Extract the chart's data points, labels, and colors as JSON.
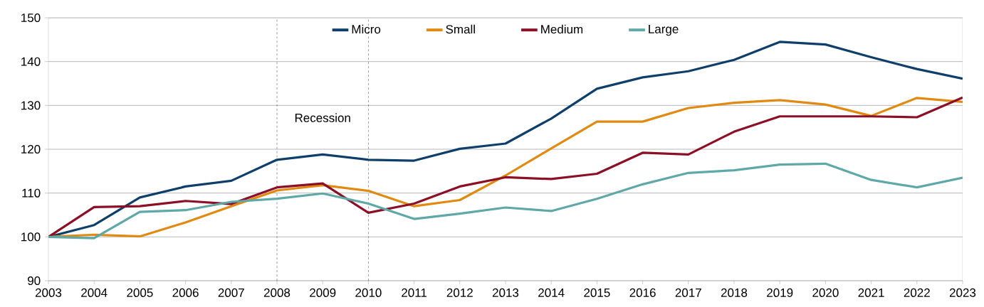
{
  "chart_data": {
    "type": "line",
    "x": [
      2003,
      2004,
      2005,
      2006,
      2007,
      2008,
      2009,
      2010,
      2011,
      2012,
      2013,
      2014,
      2015,
      2016,
      2017,
      2018,
      2019,
      2020,
      2021,
      2022,
      2023
    ],
    "series": [
      {
        "name": "Micro",
        "color": "#0e3f6b",
        "values": [
          100,
          102.7,
          109,
          111.5,
          112.8,
          117.6,
          118.8,
          117.6,
          117.4,
          120.1,
          121.3,
          127,
          133.8,
          136.4,
          137.8,
          140.4,
          144.5,
          143.9,
          141,
          138.3,
          136.1
        ]
      },
      {
        "name": "Small",
        "color": "#e08a12",
        "values": [
          100,
          100.5,
          100.1,
          103.3,
          107,
          110.6,
          111.8,
          110.5,
          107,
          108.4,
          114,
          120.2,
          126.3,
          126.3,
          129.4,
          130.6,
          131.2,
          130.2,
          127.6,
          131.7,
          130.8
        ]
      },
      {
        "name": "Medium",
        "color": "#8c0f25",
        "values": [
          100,
          106.8,
          107,
          108.2,
          107.5,
          111.3,
          112.2,
          105.5,
          107.6,
          111.5,
          113.6,
          113.2,
          114.4,
          119.2,
          118.8,
          124,
          127.5,
          127.5,
          127.5,
          127.3,
          131.8
        ]
      },
      {
        "name": "Large",
        "color": "#5fa8a8",
        "values": [
          100,
          99.7,
          105.7,
          106.1,
          108,
          108.7,
          109.9,
          107.6,
          104.1,
          105.3,
          106.7,
          105.9,
          108.7,
          112,
          114.6,
          115.2,
          116.5,
          116.7,
          113,
          111.3,
          113.5
        ]
      }
    ],
    "xlim": [
      2003,
      2023
    ],
    "xticks": [
      2003,
      2004,
      2005,
      2006,
      2007,
      2008,
      2009,
      2010,
      2011,
      2012,
      2013,
      2014,
      2015,
      2016,
      2017,
      2018,
      2019,
      2020,
      2021,
      2022,
      2023
    ],
    "ylim": [
      90,
      150
    ],
    "yticks": [
      90,
      100,
      110,
      120,
      130,
      140,
      150
    ],
    "grid": "y",
    "legend": "top",
    "marker": "none",
    "line_style": "solid",
    "ref_lines": [
      {
        "axis": "x",
        "value": 2008,
        "line_style": "dashed"
      },
      {
        "axis": "x",
        "value": 2010,
        "line_style": "dashed"
      }
    ],
    "annotations": [
      "Recession"
    ]
  }
}
